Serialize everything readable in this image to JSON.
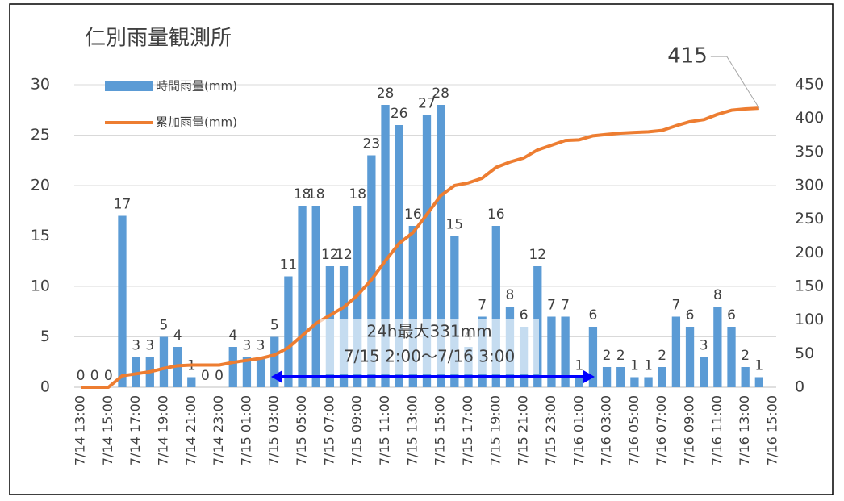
{
  "chart_data": {
    "type": "bar",
    "title": "仁別雨量観測所",
    "categories": [
      "7/14 13:00",
      null,
      "7/14 15:00",
      null,
      "7/14 17:00",
      null,
      "7/14 19:00",
      null,
      "7/14 21:00",
      null,
      "7/14 23:00",
      null,
      "7/15 01:00",
      null,
      "7/15 03:00",
      null,
      "7/15 05:00",
      null,
      "7/15 07:00",
      null,
      "7/15 09:00",
      null,
      "7/15 11:00",
      null,
      "7/15 13:00",
      null,
      "7/15 15:00",
      null,
      "7/15 17:00",
      null,
      "7/15 19:00",
      null,
      "7/15 21:00",
      null,
      "7/15 23:00",
      null,
      "7/16 01:00",
      null,
      "7/16 03:00",
      null,
      "7/16 05:00",
      null,
      "7/16 07:00",
      null,
      "7/16 09:00",
      null,
      "7/16 11:00",
      null,
      "7/16 13:00",
      null,
      "7/16 15:00"
    ],
    "series": [
      {
        "name": "時間雨量(mm)",
        "type": "bar",
        "color": "#5b9bd5",
        "values": [
          0,
          0,
          0,
          17,
          3,
          3,
          5,
          4,
          1,
          0,
          0,
          4,
          3,
          3,
          5,
          11,
          18,
          18,
          12,
          12,
          18,
          23,
          28,
          26,
          16,
          27,
          28,
          15,
          4,
          7,
          16,
          8,
          6,
          12,
          7,
          7,
          1,
          6,
          2,
          2,
          1,
          1,
          2,
          7,
          6,
          3,
          8,
          6,
          2,
          1,
          null
        ]
      },
      {
        "name": "累加雨量(mm)",
        "type": "line",
        "axis": "y2",
        "color": "#ed7d31",
        "values": [
          0,
          0,
          0,
          17,
          20,
          23,
          28,
          32,
          33,
          33,
          33,
          37,
          40,
          43,
          48,
          59,
          77,
          95,
          107,
          119,
          137,
          160,
          188,
          214,
          230,
          257,
          285,
          300,
          304,
          311,
          327,
          335,
          341,
          353,
          360,
          367,
          368,
          374,
          376,
          378,
          379,
          380,
          382,
          389,
          395,
          398,
          406,
          412,
          414,
          415,
          null
        ]
      }
    ],
    "ylim": [
      0,
      30
    ],
    "yticks": [
      0,
      5,
      10,
      15,
      20,
      25,
      30
    ],
    "y2lim": [
      0,
      450
    ],
    "y2ticks": [
      0,
      50,
      100,
      150,
      200,
      250,
      300,
      350,
      400,
      450
    ],
    "grid": true,
    "legend": "upper left",
    "annotations": [
      "24h最大331mm",
      "7/15 2:00～7/16 3:00"
    ]
  }
}
